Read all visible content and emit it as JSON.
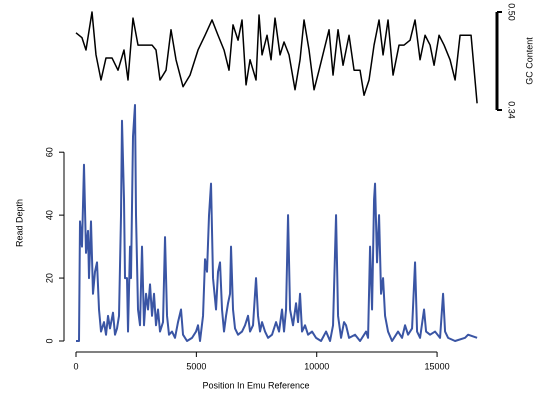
{
  "chart_data": [
    {
      "type": "line",
      "ylabel": "GC Content",
      "axis_side": "right",
      "xlim": [
        0,
        16700
      ],
      "ylim": [
        0.34,
        0.5
      ],
      "yticks": [
        0.34,
        {
          "value": 0.5,
          "label": "0.50"
        }
      ],
      "series": [
        {
          "color": "#000000",
          "x": [
            0,
            249,
            415,
            665,
            831,
            1039,
            1246,
            1496,
            1745,
            1994,
            2160,
            2368,
            2576,
            2867,
            3158,
            3324,
            3490,
            3740,
            3947,
            4155,
            4446,
            4737,
            5069,
            5360,
            5651,
            5900,
            6149,
            6357,
            6523,
            6731,
            6897,
            7064,
            7230,
            7479,
            7604,
            7728,
            7936,
            8102,
            8268,
            8476,
            8642,
            8850,
            9099,
            9307,
            9473,
            9681,
            9889,
            10097,
            10304,
            10512,
            10678,
            10886,
            11094,
            11343,
            11551,
            11800,
            11966,
            12174,
            12382,
            12589,
            12756,
            12963,
            13171,
            13420,
            13628,
            13878,
            14085,
            14293,
            14501,
            14709,
            14875,
            15082,
            15290,
            15540,
            15748,
            15955,
            16246,
            16412,
            16662
          ],
          "values": [
            0.466,
            0.458,
            0.438,
            0.5,
            0.43,
            0.389,
            0.425,
            0.425,
            0.405,
            0.438,
            0.389,
            0.49,
            0.446,
            0.446,
            0.446,
            0.438,
            0.389,
            0.405,
            0.471,
            0.422,
            0.378,
            0.397,
            0.438,
            0.462,
            0.487,
            0.462,
            0.438,
            0.405,
            0.479,
            0.454,
            0.487,
            0.381,
            0.422,
            0.389,
            0.495,
            0.43,
            0.462,
            0.422,
            0.49,
            0.43,
            0.451,
            0.43,
            0.373,
            0.422,
            0.487,
            0.438,
            0.373,
            0.405,
            0.438,
            0.471,
            0.397,
            0.471,
            0.413,
            0.462,
            0.405,
            0.405,
            0.364,
            0.389,
            0.446,
            0.487,
            0.43,
            0.487,
            0.397,
            0.446,
            0.446,
            0.454,
            0.487,
            0.422,
            0.462,
            0.446,
            0.413,
            0.462,
            0.446,
            0.422,
            0.389,
            0.462,
            0.462,
            0.462,
            0.351
          ]
        }
      ]
    },
    {
      "type": "line",
      "xlabel": "Position In Emu Reference",
      "ylabel": "Read Depth",
      "axis_side": "left",
      "xlim": [
        0,
        16700
      ],
      "xticks": [
        0,
        5000,
        10000,
        15000
      ],
      "ylim": [
        0,
        75
      ],
      "yticks": [
        0,
        20,
        40,
        60
      ],
      "series": [
        {
          "color": "#3a55a4",
          "x": [
            0,
            125,
            166,
            249,
            332,
            416,
            499,
            540,
            623,
            706,
            789,
            873,
            956,
            1039,
            1163,
            1247,
            1330,
            1413,
            1537,
            1620,
            1704,
            1787,
            1870,
            1911,
            1994,
            2036,
            2119,
            2161,
            2244,
            2285,
            2368,
            2451,
            2493,
            2576,
            2659,
            2742,
            2825,
            2909,
            2992,
            3075,
            3158,
            3241,
            3324,
            3407,
            3490,
            3615,
            3698,
            3781,
            3864,
            3989,
            4113,
            4238,
            4363,
            4446,
            4612,
            4820,
            4986,
            5069,
            5152,
            5277,
            5360,
            5443,
            5526,
            5609,
            5692,
            5817,
            5900,
            5983,
            6066,
            6149,
            6233,
            6316,
            6399,
            6440,
            6523,
            6606,
            6731,
            6897,
            7022,
            7147,
            7230,
            7354,
            7479,
            7562,
            7645,
            7728,
            7853,
            7978,
            8144,
            8310,
            8435,
            8559,
            8642,
            8726,
            8809,
            8892,
            9016,
            9141,
            9224,
            9307,
            9390,
            9515,
            9640,
            9806,
            9972,
            10180,
            10388,
            10554,
            10678,
            10803,
            10886,
            11011,
            11135,
            11218,
            11343,
            11592,
            11801,
            12050,
            12133,
            12216,
            12299,
            12382,
            12423,
            12506,
            12590,
            12673,
            12756,
            12839,
            12963,
            13130,
            13379,
            13545,
            13670,
            13794,
            13961,
            14085,
            14169,
            14293,
            14459,
            14543,
            14709,
            14916,
            15124,
            15249,
            15332,
            15457,
            15748,
            16163,
            16288,
            16662
          ],
          "values": [
            0,
            0,
            38,
            30,
            56,
            28,
            35,
            20,
            38,
            15,
            22,
            25,
            10,
            3,
            6,
            2,
            8,
            4,
            9,
            2,
            4,
            8,
            40,
            70,
            45,
            20,
            20,
            3,
            30,
            20,
            65,
            75,
            40,
            10,
            5,
            30,
            5,
            15,
            10,
            18,
            8,
            15,
            5,
            10,
            3,
            6,
            33,
            8,
            2,
            3,
            1,
            6,
            10,
            2,
            0,
            1,
            3,
            5,
            0,
            8,
            26,
            22,
            40,
            50,
            20,
            10,
            22,
            25,
            10,
            3,
            8,
            12,
            15,
            30,
            10,
            4,
            2,
            3,
            5,
            8,
            3,
            5,
            20,
            8,
            3,
            6,
            3,
            1,
            2,
            6,
            3,
            10,
            3,
            10,
            40,
            10,
            5,
            12,
            6,
            15,
            3,
            5,
            2,
            3,
            1,
            0,
            3,
            0,
            5,
            40,
            8,
            1,
            6,
            5,
            1,
            2,
            0,
            3,
            1,
            30,
            10,
            45,
            50,
            25,
            40,
            15,
            20,
            8,
            3,
            0,
            3,
            1,
            5,
            2,
            4,
            25,
            3,
            1,
            10,
            3,
            2,
            3,
            1,
            15,
            3,
            1,
            0,
            1,
            2,
            1
          ]
        }
      ]
    }
  ]
}
